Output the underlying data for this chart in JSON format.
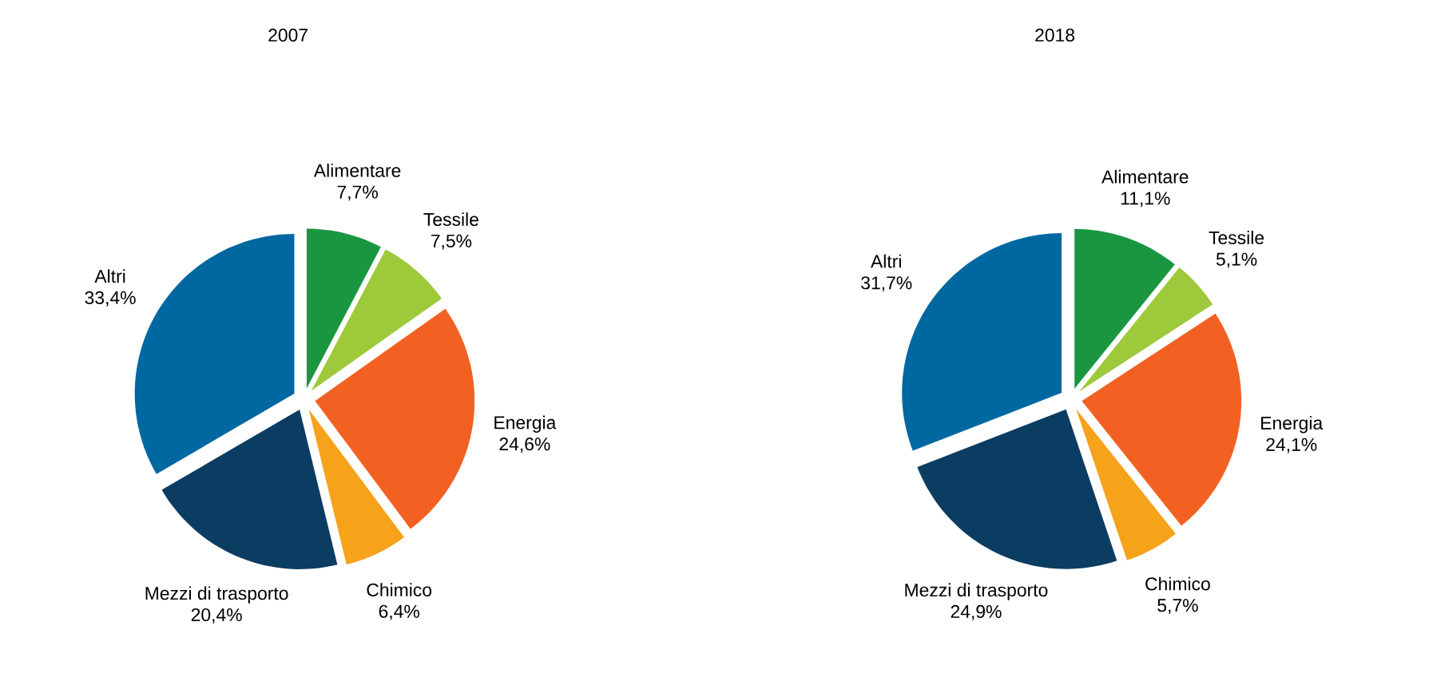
{
  "chart_data": [
    {
      "type": "pie",
      "title": "2007",
      "categories": [
        "Alimentare",
        "Tessile",
        "Energia",
        "Chimico",
        "Mezzi di trasporto",
        "Altri"
      ],
      "values": [
        7.7,
        7.5,
        24.6,
        6.4,
        20.4,
        33.4
      ],
      "value_labels": [
        "7,7%",
        "7,5%",
        "24,6%",
        "6,4%",
        "20,4%",
        "33,4%"
      ],
      "colors": [
        "#1a9641",
        "#9dc93b",
        "#f26122",
        "#f7a21b",
        "#0b3d63",
        "#0068a0"
      ]
    },
    {
      "type": "pie",
      "title": "2018",
      "categories": [
        "Alimentare",
        "Tessile",
        "Energia",
        "Chimico",
        "Mezzi di trasporto",
        "Altri"
      ],
      "values": [
        11.1,
        5.1,
        24.1,
        5.7,
        24.9,
        31.7
      ],
      "value_labels": [
        "11,1%",
        "5,1%",
        "24,1%",
        "5,7%",
        "24,9%",
        "31,7%"
      ],
      "colors": [
        "#1a9641",
        "#9dc93b",
        "#f26122",
        "#f7a21b",
        "#0b3d63",
        "#0068a0"
      ]
    }
  ]
}
